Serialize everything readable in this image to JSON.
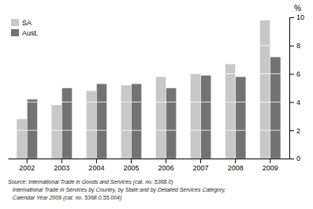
{
  "chart_data": {
    "type": "bar",
    "categories": [
      "2002",
      "2003",
      "2004",
      "2005",
      "2006",
      "2007",
      "2008",
      "2009"
    ],
    "series": [
      {
        "name": "SA",
        "color": "#c8c8c8",
        "values": [
          2.8,
          3.8,
          4.8,
          5.2,
          5.8,
          6.0,
          6.7,
          9.8
        ]
      },
      {
        "name": "Aust.",
        "color": "#737373",
        "values": [
          4.2,
          5.0,
          5.3,
          5.3,
          5.0,
          5.9,
          5.8,
          7.2
        ]
      }
    ],
    "ylabel": "%",
    "ylim": [
      0,
      10
    ],
    "yticks": [
      0,
      2,
      4,
      6,
      8,
      10
    ],
    "grid": true,
    "legend": "upper-left",
    "annotations": [
      "Source: International Trade in Goods and Services (cat. no. 5368.0)\n   International Trade in Services by Country, by State and by Detailed Services Category,\n   Calendar Year 2009 (cat. no. 5368.0.55.004)"
    ]
  }
}
